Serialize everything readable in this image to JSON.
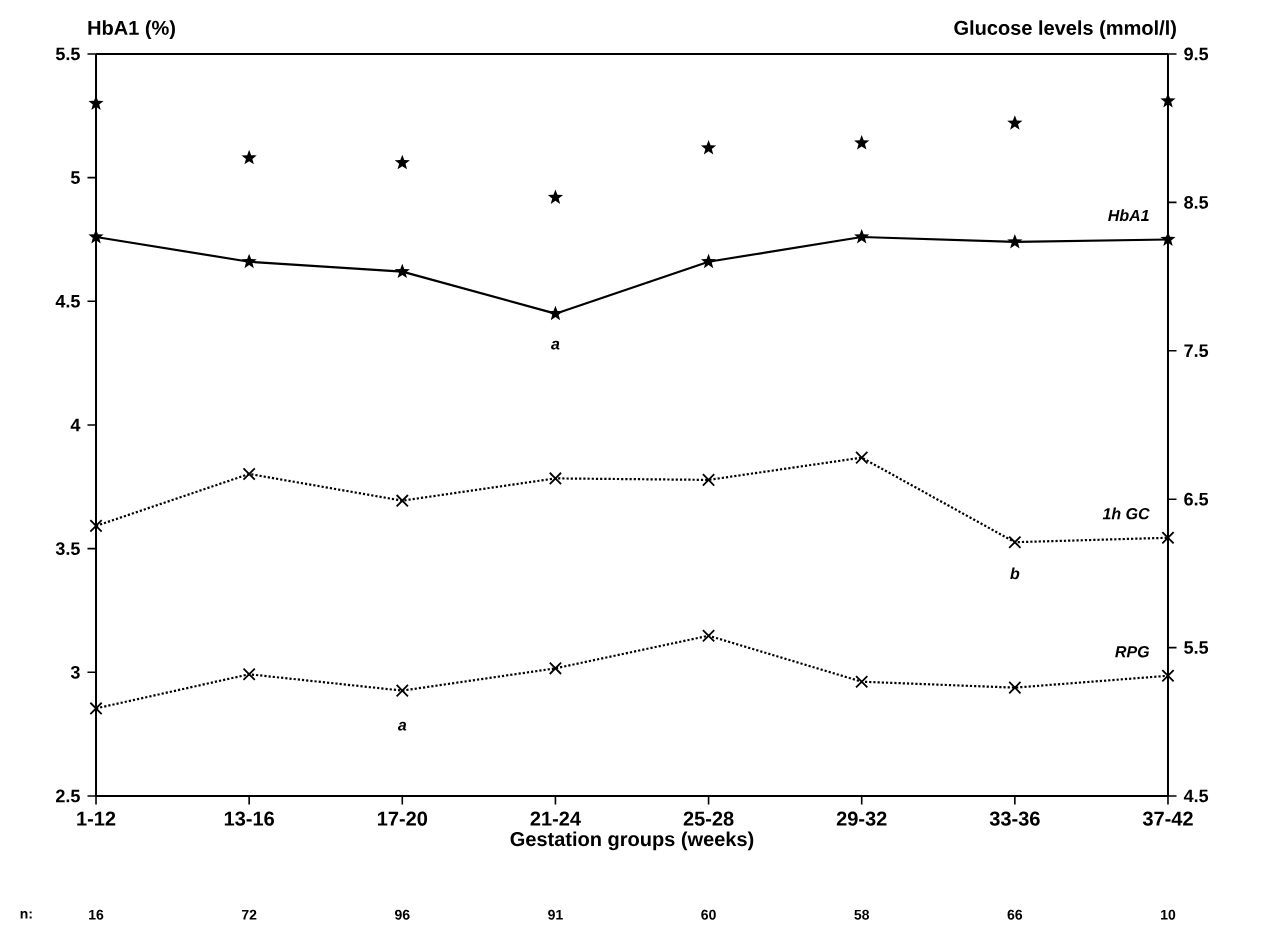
{
  "chart_data": {
    "type": "line",
    "xlabel": "Gestation groups (weeks)",
    "ylabel": "HbA1 (%)",
    "y2label": "Glucose levels (mmol/l)",
    "categories": [
      "1-12",
      "13-16",
      "17-20",
      "21-24",
      "25-28",
      "29-32",
      "33-36",
      "37-42"
    ],
    "series": [
      {
        "type": "scatter",
        "marker": "star",
        "color": "#000000",
        "values": [
          5.3,
          5.08,
          5.06,
          4.92,
          5.12,
          5.14,
          5.22,
          5.31
        ]
      },
      {
        "name": "HbA1",
        "marker": "star",
        "line_style": "solid",
        "color": "#000000",
        "values": [
          4.76,
          4.66,
          4.62,
          4.45,
          4.66,
          4.76,
          4.74,
          4.75
        ]
      },
      {
        "name": "1h GC",
        "axis": "y2",
        "marker": "cross",
        "line_style": "dotted",
        "color": "#000000",
        "values": [
          6.32,
          6.67,
          6.49,
          6.64,
          6.63,
          6.78,
          6.21,
          6.24
        ]
      },
      {
        "name": "RPG",
        "axis": "y2",
        "marker": "cross",
        "line_style": "dotted",
        "color": "#000000",
        "values": [
          5.09,
          5.32,
          5.21,
          5.36,
          5.58,
          5.27,
          5.23,
          5.31
        ]
      }
    ],
    "ylim": [
      2.5,
      5.5
    ],
    "yticks": [
      2.5,
      3,
      3.5,
      4,
      4.5,
      5,
      5.5
    ],
    "y2lim": [
      4.5,
      9.5
    ],
    "y2ticks": [
      4.5,
      5.5,
      6.5,
      7.5,
      8.5,
      9.5
    ],
    "grid": false,
    "legend": false,
    "annotations": [
      {
        "text": "a",
        "x": "21-24",
        "y": 4.45
      },
      "b",
      "a",
      "n:",
      "16",
      "72",
      "96",
      "91",
      "60",
      "58",
      "66",
      "10"
    ]
  }
}
